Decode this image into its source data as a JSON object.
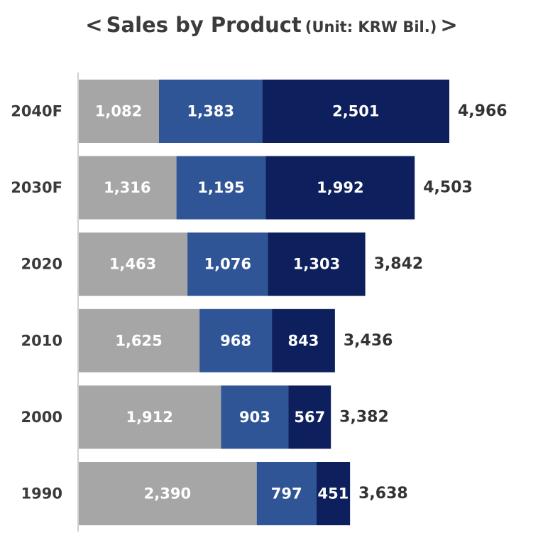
{
  "title": {
    "open_bracket": "<",
    "main": "Sales by Product",
    "unit": "(Unit: KRW Bil.)",
    "close_bracket": ">"
  },
  "colors": {
    "segment_1": "#a6a6a6",
    "segment_2": "#2f5597",
    "segment_3": "#0d1f5c",
    "axis": "#d0d0d0"
  },
  "chart_data": {
    "type": "bar",
    "orientation": "horizontal",
    "stacked": true,
    "title": "< Sales by Product (Unit: KRW Bil.) >",
    "categories": [
      "2040F",
      "2030F",
      "2020",
      "2010",
      "2000",
      "1990"
    ],
    "series": [
      {
        "values": [
          1082,
          1316,
          1463,
          1625,
          1912,
          2390
        ],
        "labels": [
          "1,082",
          "1,316",
          "1,463",
          "1,625",
          "1,912",
          "2,390"
        ],
        "color": "#a6a6a6"
      },
      {
        "values": [
          1383,
          1195,
          1076,
          968,
          903,
          797
        ],
        "labels": [
          "1,383",
          "1,195",
          "1,076",
          "968",
          "903",
          "797"
        ],
        "color": "#2f5597"
      },
      {
        "values": [
          2501,
          1992,
          1303,
          843,
          567,
          451
        ],
        "labels": [
          "2,501",
          "1,992",
          "1,303",
          "843",
          "567",
          "451"
        ],
        "color": "#0d1f5c"
      }
    ],
    "totals": [
      4966,
      4503,
      3842,
      3436,
      3382,
      3638
    ],
    "total_labels": [
      "4,966",
      "4,503",
      "3,842",
      "3,436",
      "3,382",
      "3,638"
    ],
    "xlim": [
      0,
      4966
    ],
    "legend": "none",
    "grid": false
  }
}
